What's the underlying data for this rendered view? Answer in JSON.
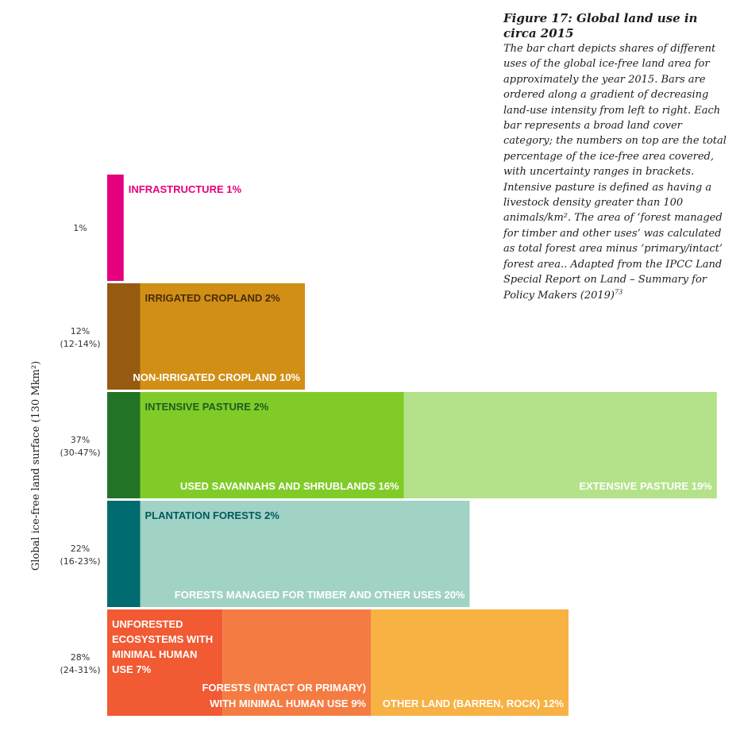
{
  "caption": {
    "title": "Figure 17: Global land use in circa 2015",
    "body": "The bar chart depicts shares of different uses of the global ice-free land area for approximately the year 2015. Bars are ordered along a gradient of decreasing land-use intensity from left to right. Each bar represents a broad land cover category; the numbers on top are the total percentage of the ice-free area covered, with uncertainty ranges in brackets. Intensive pasture is defined as having a livestock density greater than 100 animals/km². The area of ‘forest managed for timber and other uses’ was calculated as total forest area minus ‘primary/intact’ forest area.. Adapted from the IPCC Land Special Report on Land – Summary for Policy Makers (2019)",
    "footnote": "73"
  },
  "chart_data": {
    "type": "bar",
    "orientation": "horizontal-stacked",
    "ylabel": "Global ice-free land surface (130 Mkm²)",
    "rows": [
      {
        "total": "1%",
        "range": "",
        "segments": [
          {
            "label": "INFRASTRUCTURE 1%",
            "value": 1,
            "color": "#e5007d",
            "label_color": "#e5007d",
            "label_pos": "outside-top"
          }
        ]
      },
      {
        "total": "12%",
        "range": "(12-14%)",
        "segments": [
          {
            "label": "IRRIGATED CROPLAND 2%",
            "value": 2,
            "color": "#965b10",
            "label_color": "#4a2c08",
            "label_pos": "top"
          },
          {
            "label": "NON-IRRIGATED CROPLAND 10%",
            "value": 10,
            "color": "#d18f16",
            "label_color": "#ffffff",
            "label_pos": "bottom"
          }
        ]
      },
      {
        "total": "37%",
        "range": "(30-47%)",
        "segments": [
          {
            "label": "INTENSIVE PASTURE 2%",
            "value": 2,
            "color": "#237327",
            "label_color": "#1e5c22",
            "label_pos": "top"
          },
          {
            "label": "USED SAVANNAHS AND SHRUBLANDS 16%",
            "value": 16,
            "color": "#80cb28",
            "label_color": "#ffffff",
            "label_pos": "bottom"
          },
          {
            "label": "EXTENSIVE PASTURE 19%",
            "value": 19,
            "color": "#b3e28a",
            "label_color": "#ffffff",
            "label_pos": "bottom"
          }
        ]
      },
      {
        "total": "22%",
        "range": "(16-23%)",
        "segments": [
          {
            "label": "PLANTATION FORESTS 2%",
            "value": 2,
            "color": "#006c6f",
            "label_color": "#00595c",
            "label_pos": "top"
          },
          {
            "label": "FORESTS MANAGED FOR TIMBER AND OTHER USES 20%",
            "value": 20,
            "color": "#a0d2c5",
            "label_color": "#ffffff",
            "label_pos": "bottom"
          }
        ]
      },
      {
        "total": "28%",
        "range": "(24-31%)",
        "segments": [
          {
            "label": "UNFORESTED ECOSYSTEMS WITH MINIMAL HUMAN USE 7%",
            "value": 7,
            "color": "#f15a33",
            "label_color": "#ffffff",
            "label_pos": "top-wrap"
          },
          {
            "label": "FORESTS (INTACT OR PRIMARY) WITH MINIMAL HUMAN USE 9%",
            "value": 9,
            "color": "#f47c43",
            "label_color": "#ffffff",
            "label_pos": "bottom-wrap"
          },
          {
            "label": "OTHER LAND (BARREN, ROCK) 12%",
            "value": 12,
            "color": "#f8b143",
            "label_color": "#ffffff",
            "label_pos": "bottom"
          }
        ]
      }
    ]
  }
}
